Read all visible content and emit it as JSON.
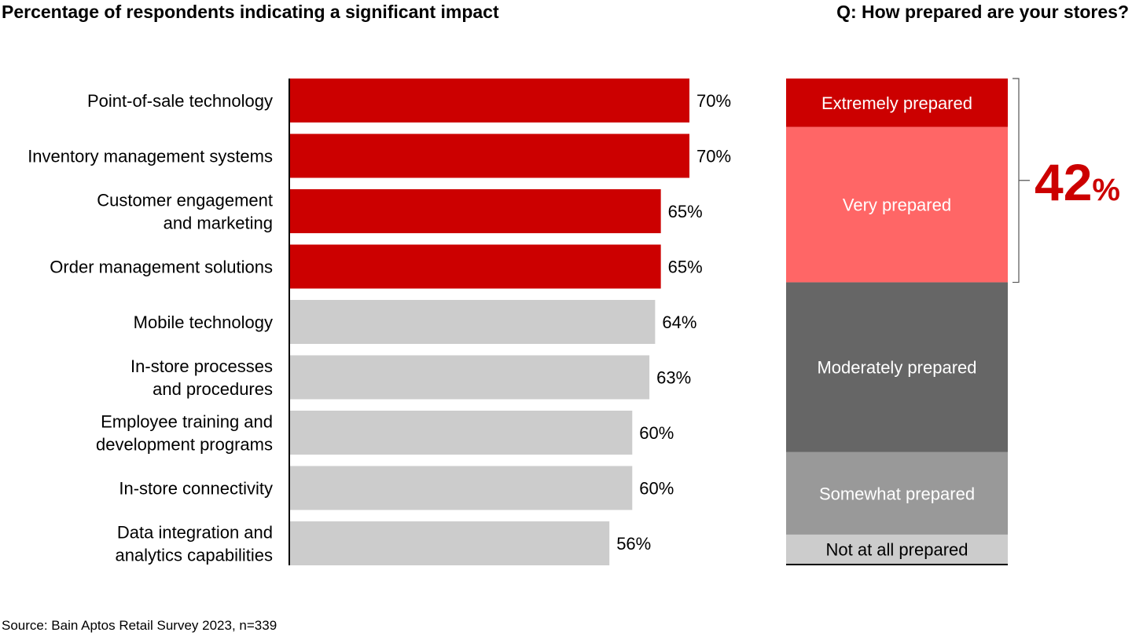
{
  "left_title": "Percentage of respondents indicating a significant impact",
  "right_title": "Q: How prepared are your stores?",
  "source": "Source: Bain Aptos Retail Survey 2023, n=339",
  "colors": {
    "highlight": "#cc0000",
    "muted": "#cccccc",
    "axis": "#000000"
  },
  "chart_data": [
    {
      "type": "bar",
      "orientation": "horizontal",
      "title": "Percentage of respondents indicating a significant impact",
      "xlim": [
        0,
        100
      ],
      "categories": [
        [
          "Point-of-sale technology"
        ],
        [
          "Inventory management systems"
        ],
        [
          "Customer engagement",
          "and marketing"
        ],
        [
          "Order management solutions"
        ],
        [
          "Mobile technology"
        ],
        [
          "In-store processes",
          "and procedures"
        ],
        [
          "Employee training and",
          "development programs"
        ],
        [
          "In-store connectivity"
        ],
        [
          "Data integration and",
          "analytics capabilities"
        ]
      ],
      "values": [
        70,
        70,
        65,
        65,
        64,
        63,
        60,
        60,
        56
      ],
      "value_labels": [
        "70%",
        "70%",
        "65%",
        "65%",
        "64%",
        "63%",
        "60%",
        "60%",
        "56%"
      ],
      "highlighted": [
        true,
        true,
        true,
        true,
        false,
        false,
        false,
        false,
        false
      ]
    },
    {
      "type": "bar",
      "orientation": "stacked-vertical",
      "title": "Q: How prepared are your stores?",
      "segments": [
        {
          "name": "Extremely prepared",
          "value": 10,
          "color": "#cc0000",
          "text_color": "#ffffff"
        },
        {
          "name": "Very prepared",
          "value": 32,
          "color": "#ff6666",
          "text_color": "#ffffff"
        },
        {
          "name": "Moderately prepared",
          "value": 35,
          "color": "#666666",
          "text_color": "#ffffff"
        },
        {
          "name": "Somewhat prepared",
          "value": 17,
          "color": "#999999",
          "text_color": "#ffffff"
        },
        {
          "name": "Not at all prepared",
          "value": 6,
          "color": "#cccccc",
          "text_color": "#000000"
        }
      ],
      "bracket": {
        "covers": [
          "Extremely prepared",
          "Very prepared"
        ],
        "number": "42",
        "unit": "%"
      }
    }
  ]
}
